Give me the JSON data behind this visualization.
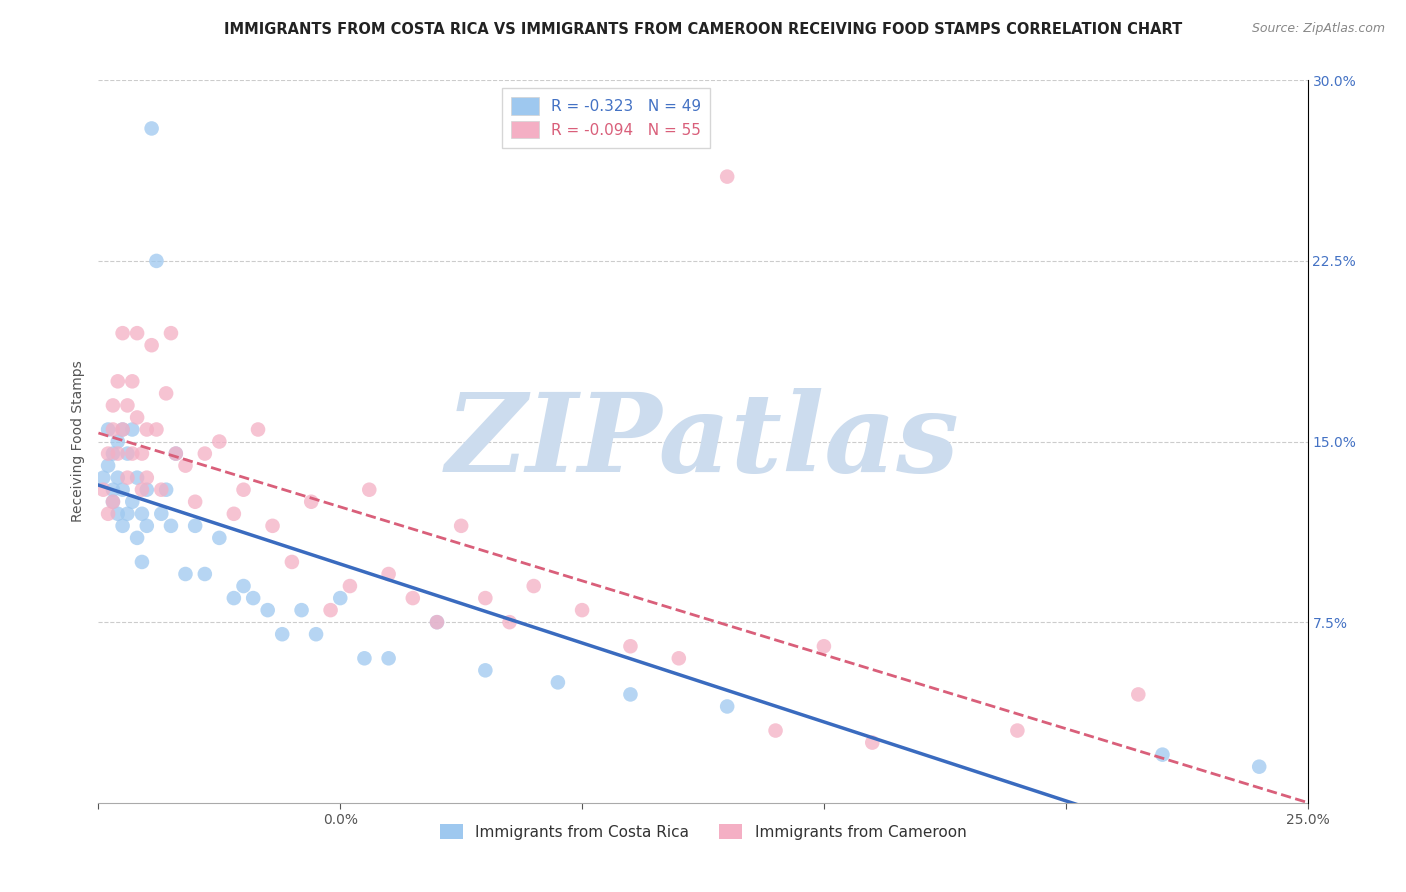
{
  "title": "IMMIGRANTS FROM COSTA RICA VS IMMIGRANTS FROM CAMEROON RECEIVING FOOD STAMPS CORRELATION CHART",
  "source": "Source: ZipAtlas.com",
  "ylabel": "Receiving Food Stamps",
  "xlim": [
    0.0,
    0.25
  ],
  "ylim": [
    0.0,
    0.3
  ],
  "xticks": [
    0.0,
    0.25
  ],
  "xtick_labels": [
    "0.0%",
    "25.0%"
  ],
  "xtick_minor": [
    0.05,
    0.1,
    0.15,
    0.2
  ],
  "yticks": [
    0.0,
    0.075,
    0.15,
    0.225,
    0.3
  ],
  "ytick_labels": [
    "",
    "7.5%",
    "15.0%",
    "22.5%",
    "30.0%"
  ],
  "legend_labels": [
    "Immigrants from Costa Rica",
    "Immigrants from Cameroon"
  ],
  "blue_color": "#9ec8ef",
  "pink_color": "#f4afc4",
  "blue_line_color": "#3a6bbf",
  "pink_line_color": "#d95f7a",
  "r_blue": -0.323,
  "n_blue": 49,
  "r_pink": -0.094,
  "n_pink": 55,
  "watermark": "ZIPatlas",
  "watermark_color": "#ccdcee",
  "title_fontsize": 10.5,
  "axis_label_fontsize": 10,
  "tick_fontsize": 10,
  "blue_scatter_x": [
    0.001,
    0.002,
    0.002,
    0.003,
    0.003,
    0.003,
    0.004,
    0.004,
    0.004,
    0.005,
    0.005,
    0.005,
    0.006,
    0.006,
    0.007,
    0.007,
    0.008,
    0.008,
    0.009,
    0.009,
    0.01,
    0.01,
    0.011,
    0.012,
    0.013,
    0.014,
    0.015,
    0.016,
    0.018,
    0.02,
    0.022,
    0.025,
    0.028,
    0.03,
    0.032,
    0.035,
    0.038,
    0.042,
    0.045,
    0.05,
    0.055,
    0.06,
    0.07,
    0.08,
    0.095,
    0.11,
    0.13,
    0.22,
    0.24
  ],
  "blue_scatter_y": [
    0.135,
    0.155,
    0.14,
    0.145,
    0.13,
    0.125,
    0.15,
    0.135,
    0.12,
    0.155,
    0.13,
    0.115,
    0.145,
    0.12,
    0.155,
    0.125,
    0.135,
    0.11,
    0.12,
    0.1,
    0.13,
    0.115,
    0.28,
    0.225,
    0.12,
    0.13,
    0.115,
    0.145,
    0.095,
    0.115,
    0.095,
    0.11,
    0.085,
    0.09,
    0.085,
    0.08,
    0.07,
    0.08,
    0.07,
    0.085,
    0.06,
    0.06,
    0.075,
    0.055,
    0.05,
    0.045,
    0.04,
    0.02,
    0.015
  ],
  "pink_scatter_x": [
    0.001,
    0.002,
    0.002,
    0.003,
    0.003,
    0.003,
    0.004,
    0.004,
    0.005,
    0.005,
    0.006,
    0.006,
    0.007,
    0.007,
    0.008,
    0.008,
    0.009,
    0.009,
    0.01,
    0.01,
    0.011,
    0.012,
    0.013,
    0.014,
    0.015,
    0.016,
    0.018,
    0.02,
    0.022,
    0.025,
    0.028,
    0.03,
    0.033,
    0.036,
    0.04,
    0.044,
    0.048,
    0.052,
    0.056,
    0.06,
    0.065,
    0.07,
    0.075,
    0.08,
    0.085,
    0.09,
    0.1,
    0.11,
    0.12,
    0.13,
    0.14,
    0.15,
    0.16,
    0.19,
    0.215
  ],
  "pink_scatter_y": [
    0.13,
    0.145,
    0.12,
    0.155,
    0.165,
    0.125,
    0.175,
    0.145,
    0.195,
    0.155,
    0.165,
    0.135,
    0.175,
    0.145,
    0.16,
    0.195,
    0.13,
    0.145,
    0.155,
    0.135,
    0.19,
    0.155,
    0.13,
    0.17,
    0.195,
    0.145,
    0.14,
    0.125,
    0.145,
    0.15,
    0.12,
    0.13,
    0.155,
    0.115,
    0.1,
    0.125,
    0.08,
    0.09,
    0.13,
    0.095,
    0.085,
    0.075,
    0.115,
    0.085,
    0.075,
    0.09,
    0.08,
    0.065,
    0.06,
    0.26,
    0.03,
    0.065,
    0.025,
    0.03,
    0.045
  ]
}
